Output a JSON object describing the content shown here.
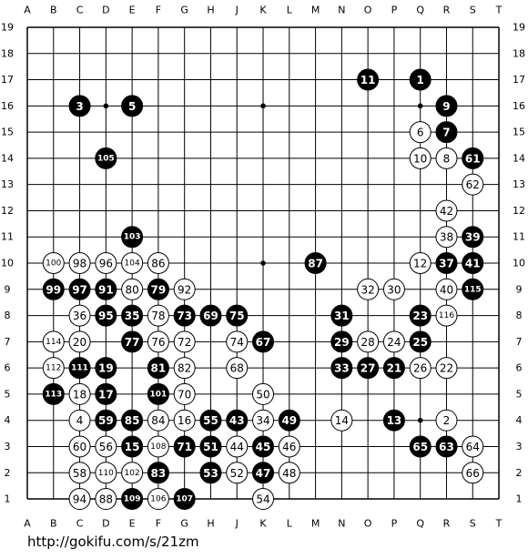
{
  "columns": [
    "A",
    "B",
    "C",
    "D",
    "E",
    "F",
    "G",
    "H",
    "J",
    "K",
    "L",
    "M",
    "N",
    "O",
    "P",
    "Q",
    "R",
    "S",
    "T"
  ],
  "rows": [
    19,
    18,
    17,
    16,
    15,
    14,
    13,
    12,
    11,
    10,
    9,
    8,
    7,
    6,
    5,
    4,
    3,
    2,
    1
  ],
  "stones": [
    {
      "move": 11,
      "col": "O",
      "row": 17,
      "color": "black"
    },
    {
      "move": 1,
      "col": "Q",
      "row": 17,
      "color": "black"
    },
    {
      "move": 3,
      "col": "C",
      "row": 16,
      "color": "black"
    },
    {
      "move": 5,
      "col": "E",
      "row": 16,
      "color": "black"
    },
    {
      "move": 9,
      "col": "R",
      "row": 16,
      "color": "black"
    },
    {
      "move": 6,
      "col": "Q",
      "row": 15,
      "color": "white"
    },
    {
      "move": 7,
      "col": "R",
      "row": 15,
      "color": "black"
    },
    {
      "move": 105,
      "col": "D",
      "row": 14,
      "color": "black"
    },
    {
      "move": 10,
      "col": "Q",
      "row": 14,
      "color": "white"
    },
    {
      "move": 8,
      "col": "R",
      "row": 14,
      "color": "white"
    },
    {
      "move": 61,
      "col": "S",
      "row": 14,
      "color": "black"
    },
    {
      "move": 62,
      "col": "S",
      "row": 13,
      "color": "white"
    },
    {
      "move": 42,
      "col": "R",
      "row": 12,
      "color": "white"
    },
    {
      "move": 103,
      "col": "E",
      "row": 11,
      "color": "black"
    },
    {
      "move": 38,
      "col": "R",
      "row": 11,
      "color": "white"
    },
    {
      "move": 39,
      "col": "S",
      "row": 11,
      "color": "black"
    },
    {
      "move": 100,
      "col": "B",
      "row": 10,
      "color": "white"
    },
    {
      "move": 98,
      "col": "C",
      "row": 10,
      "color": "white"
    },
    {
      "move": 96,
      "col": "D",
      "row": 10,
      "color": "white"
    },
    {
      "move": 104,
      "col": "E",
      "row": 10,
      "color": "white"
    },
    {
      "move": 86,
      "col": "F",
      "row": 10,
      "color": "white"
    },
    {
      "move": 87,
      "col": "M",
      "row": 10,
      "color": "black"
    },
    {
      "move": 12,
      "col": "Q",
      "row": 10,
      "color": "white"
    },
    {
      "move": 37,
      "col": "R",
      "row": 10,
      "color": "black"
    },
    {
      "move": 41,
      "col": "S",
      "row": 10,
      "color": "black"
    },
    {
      "move": 99,
      "col": "B",
      "row": 9,
      "color": "black"
    },
    {
      "move": 97,
      "col": "C",
      "row": 9,
      "color": "black"
    },
    {
      "move": 91,
      "col": "D",
      "row": 9,
      "color": "black"
    },
    {
      "move": 80,
      "col": "E",
      "row": 9,
      "color": "white"
    },
    {
      "move": 79,
      "col": "F",
      "row": 9,
      "color": "black"
    },
    {
      "move": 92,
      "col": "G",
      "row": 9,
      "color": "white"
    },
    {
      "move": 32,
      "col": "O",
      "row": 9,
      "color": "white"
    },
    {
      "move": 30,
      "col": "P",
      "row": 9,
      "color": "white"
    },
    {
      "move": 40,
      "col": "R",
      "row": 9,
      "color": "white"
    },
    {
      "move": 115,
      "col": "S",
      "row": 9,
      "color": "black"
    },
    {
      "move": 36,
      "col": "C",
      "row": 8,
      "color": "white"
    },
    {
      "move": 95,
      "col": "D",
      "row": 8,
      "color": "black"
    },
    {
      "move": 35,
      "col": "E",
      "row": 8,
      "color": "black"
    },
    {
      "move": 78,
      "col": "F",
      "row": 8,
      "color": "white"
    },
    {
      "move": 73,
      "col": "G",
      "row": 8,
      "color": "black"
    },
    {
      "move": 69,
      "col": "H",
      "row": 8,
      "color": "black"
    },
    {
      "move": 75,
      "col": "J",
      "row": 8,
      "color": "black"
    },
    {
      "move": 31,
      "col": "N",
      "row": 8,
      "color": "black"
    },
    {
      "move": 23,
      "col": "Q",
      "row": 8,
      "color": "black"
    },
    {
      "move": 116,
      "col": "R",
      "row": 8,
      "color": "white"
    },
    {
      "move": 114,
      "col": "B",
      "row": 7,
      "color": "white"
    },
    {
      "move": 20,
      "col": "C",
      "row": 7,
      "color": "white"
    },
    {
      "move": 77,
      "col": "E",
      "row": 7,
      "color": "black"
    },
    {
      "move": 76,
      "col": "F",
      "row": 7,
      "color": "white"
    },
    {
      "move": 72,
      "col": "G",
      "row": 7,
      "color": "white"
    },
    {
      "move": 74,
      "col": "J",
      "row": 7,
      "color": "white"
    },
    {
      "move": 67,
      "col": "K",
      "row": 7,
      "color": "black"
    },
    {
      "move": 29,
      "col": "N",
      "row": 7,
      "color": "black"
    },
    {
      "move": 28,
      "col": "O",
      "row": 7,
      "color": "white"
    },
    {
      "move": 24,
      "col": "P",
      "row": 7,
      "color": "white"
    },
    {
      "move": 25,
      "col": "Q",
      "row": 7,
      "color": "black"
    },
    {
      "move": 112,
      "col": "B",
      "row": 6,
      "color": "white"
    },
    {
      "move": 111,
      "col": "C",
      "row": 6,
      "color": "black"
    },
    {
      "move": 19,
      "col": "D",
      "row": 6,
      "color": "black"
    },
    {
      "move": 81,
      "col": "F",
      "row": 6,
      "color": "black"
    },
    {
      "move": 82,
      "col": "G",
      "row": 6,
      "color": "white"
    },
    {
      "move": 68,
      "col": "J",
      "row": 6,
      "color": "white"
    },
    {
      "move": 33,
      "col": "N",
      "row": 6,
      "color": "black"
    },
    {
      "move": 27,
      "col": "O",
      "row": 6,
      "color": "black"
    },
    {
      "move": 21,
      "col": "P",
      "row": 6,
      "color": "black"
    },
    {
      "move": 26,
      "col": "Q",
      "row": 6,
      "color": "white"
    },
    {
      "move": 22,
      "col": "R",
      "row": 6,
      "color": "white"
    },
    {
      "move": 113,
      "col": "B",
      "row": 5,
      "color": "black"
    },
    {
      "move": 18,
      "col": "C",
      "row": 5,
      "color": "white"
    },
    {
      "move": 17,
      "col": "D",
      "row": 5,
      "color": "black"
    },
    {
      "move": 101,
      "col": "F",
      "row": 5,
      "color": "black"
    },
    {
      "move": 70,
      "col": "G",
      "row": 5,
      "color": "white"
    },
    {
      "move": 50,
      "col": "K",
      "row": 5,
      "color": "white"
    },
    {
      "move": 4,
      "col": "C",
      "row": 4,
      "color": "white"
    },
    {
      "move": 59,
      "col": "D",
      "row": 4,
      "color": "black"
    },
    {
      "move": 85,
      "col": "E",
      "row": 4,
      "color": "black"
    },
    {
      "move": 84,
      "col": "F",
      "row": 4,
      "color": "white"
    },
    {
      "move": 16,
      "col": "G",
      "row": 4,
      "color": "white"
    },
    {
      "move": 55,
      "col": "H",
      "row": 4,
      "color": "black"
    },
    {
      "move": 43,
      "col": "J",
      "row": 4,
      "color": "black"
    },
    {
      "move": 34,
      "col": "K",
      "row": 4,
      "color": "white"
    },
    {
      "move": 49,
      "col": "L",
      "row": 4,
      "color": "black"
    },
    {
      "move": 14,
      "col": "N",
      "row": 4,
      "color": "white"
    },
    {
      "move": 13,
      "col": "P",
      "row": 4,
      "color": "black"
    },
    {
      "move": 2,
      "col": "R",
      "row": 4,
      "color": "white"
    },
    {
      "move": 60,
      "col": "C",
      "row": 3,
      "color": "white"
    },
    {
      "move": 56,
      "col": "D",
      "row": 3,
      "color": "white"
    },
    {
      "move": 15,
      "col": "E",
      "row": 3,
      "color": "black"
    },
    {
      "move": 108,
      "col": "F",
      "row": 3,
      "color": "white"
    },
    {
      "move": 71,
      "col": "G",
      "row": 3,
      "color": "black"
    },
    {
      "move": 51,
      "col": "H",
      "row": 3,
      "color": "black"
    },
    {
      "move": 44,
      "col": "J",
      "row": 3,
      "color": "white"
    },
    {
      "move": 45,
      "col": "K",
      "row": 3,
      "color": "black"
    },
    {
      "move": 46,
      "col": "L",
      "row": 3,
      "color": "white"
    },
    {
      "move": 65,
      "col": "Q",
      "row": 3,
      "color": "black"
    },
    {
      "move": 63,
      "col": "R",
      "row": 3,
      "color": "black"
    },
    {
      "move": 64,
      "col": "S",
      "row": 3,
      "color": "white"
    },
    {
      "move": 58,
      "col": "C",
      "row": 2,
      "color": "white"
    },
    {
      "move": 110,
      "col": "D",
      "row": 2,
      "color": "white"
    },
    {
      "move": 102,
      "col": "E",
      "row": 2,
      "color": "white"
    },
    {
      "move": 83,
      "col": "F",
      "row": 2,
      "color": "black"
    },
    {
      "move": 53,
      "col": "H",
      "row": 2,
      "color": "black"
    },
    {
      "move": 52,
      "col": "J",
      "row": 2,
      "color": "white"
    },
    {
      "move": 47,
      "col": "K",
      "row": 2,
      "color": "black"
    },
    {
      "move": 48,
      "col": "L",
      "row": 2,
      "color": "white"
    },
    {
      "move": 66,
      "col": "S",
      "row": 2,
      "color": "white"
    },
    {
      "move": 94,
      "col": "C",
      "row": 1,
      "color": "white"
    },
    {
      "move": 88,
      "col": "D",
      "row": 1,
      "color": "white"
    },
    {
      "move": 109,
      "col": "E",
      "row": 1,
      "color": "black"
    },
    {
      "move": 106,
      "col": "F",
      "row": 1,
      "color": "white"
    },
    {
      "move": 107,
      "col": "G",
      "row": 1,
      "color": "black"
    },
    {
      "move": 54,
      "col": "K",
      "row": 1,
      "color": "white"
    }
  ],
  "footer": "http://gokifu.com/s/21zm"
}
